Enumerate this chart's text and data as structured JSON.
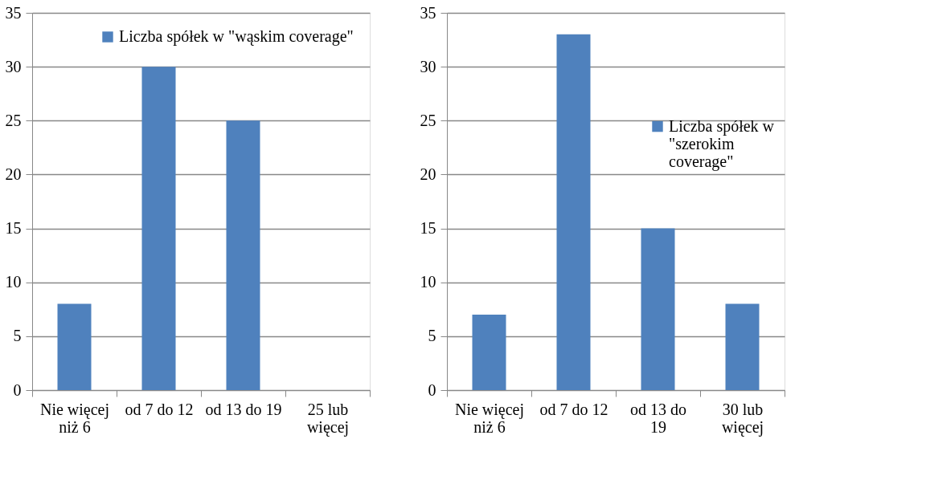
{
  "chart_data": [
    {
      "type": "bar",
      "categories": [
        "Nie więcej niż 6",
        "od 7 do 12",
        "od 13 do 19",
        "25 lub więcej"
      ],
      "series": [
        {
          "name": "Liczba spółek w \"wąskim coverage\"",
          "color": "#4f81bd",
          "values": [
            8,
            30,
            25,
            0
          ]
        }
      ],
      "ylim": [
        0,
        35
      ],
      "yticks": [
        0,
        5,
        10,
        15,
        20,
        25,
        30,
        35
      ],
      "grid": "y",
      "legend": "top right"
    },
    {
      "type": "bar",
      "categories": [
        "Nie więcej niż 6",
        "od 7 do 12",
        "od 13 do 19",
        "30 lub więcej"
      ],
      "series": [
        {
          "name": "Liczba spółek w \"szerokim coverage\"",
          "color": "#4f81bd",
          "values": [
            7,
            33,
            15,
            8
          ]
        }
      ],
      "ylim": [
        0,
        35
      ],
      "yticks": [
        0,
        5,
        10,
        15,
        20,
        25,
        30,
        35
      ],
      "grid": "y",
      "legend": "right"
    }
  ]
}
